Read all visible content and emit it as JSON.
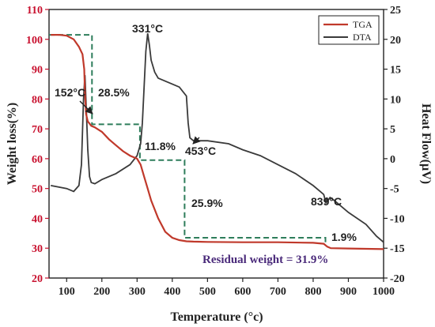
{
  "chart_data": {
    "type": "line",
    "xlabel": "Temperature (°c)",
    "ylabel": "Weight loss(%)",
    "y2label": "Heat Flow(µV)",
    "xlim": [
      50,
      1000
    ],
    "ylim": [
      20,
      110
    ],
    "y2lim": [
      -20,
      25
    ],
    "x_ticks": [
      100,
      200,
      300,
      400,
      500,
      600,
      700,
      800,
      900,
      1000
    ],
    "y_ticks": [
      20,
      30,
      40,
      50,
      60,
      70,
      80,
      90,
      100,
      110
    ],
    "y2_ticks": [
      -20,
      -15,
      -10,
      -5,
      0,
      5,
      10,
      15,
      20,
      25
    ],
    "legend": {
      "position": "top-right",
      "entries": [
        "TGA",
        "DTA"
      ]
    },
    "colors": {
      "TGA": "#c0392b",
      "DTA": "#3a3a3a",
      "steps": "#2e7d5b"
    },
    "series": [
      {
        "name": "TGA",
        "axis": "left",
        "x": [
          55,
          80,
          100,
          120,
          135,
          145,
          150,
          152,
          155,
          160,
          170,
          180,
          200,
          220,
          240,
          260,
          280,
          300,
          310,
          320,
          330,
          340,
          360,
          380,
          400,
          420,
          440,
          460,
          500,
          600,
          700,
          800,
          830,
          840,
          850,
          900,
          950,
          1000
        ],
        "y": [
          101.5,
          101.5,
          101.2,
          100,
          97.5,
          95,
          90,
          82,
          75,
          72.5,
          71,
          70.5,
          69,
          66.5,
          64.5,
          62.5,
          61,
          60,
          58,
          54,
          50,
          46,
          40,
          35.5,
          33.5,
          32.7,
          32.3,
          32.2,
          32.1,
          32.0,
          32.0,
          31.8,
          31.5,
          30.5,
          30.0,
          29.9,
          29.8,
          29.7
        ]
      },
      {
        "name": "DTA",
        "axis": "right",
        "x": [
          55,
          100,
          120,
          135,
          142,
          148,
          152,
          156,
          160,
          165,
          170,
          180,
          200,
          240,
          280,
          300,
          310,
          315,
          320,
          325,
          330,
          335,
          340,
          350,
          360,
          380,
          400,
          420,
          440,
          445,
          450,
          460,
          500,
          560,
          600,
          650,
          700,
          750,
          800,
          820,
          830,
          837,
          839,
          842,
          848,
          860,
          900,
          950,
          980,
          1000
        ],
        "y": [
          -4.5,
          -5.0,
          -5.5,
          -4.5,
          -1.0,
          10.0,
          14.0,
          8.0,
          1.5,
          -3.0,
          -4.0,
          -4.2,
          -3.5,
          -2.5,
          -1.0,
          0.5,
          2.5,
          6.0,
          12.0,
          18.0,
          21.0,
          19.0,
          16.5,
          14.5,
          13.5,
          13.0,
          12.5,
          12.0,
          10.5,
          6.0,
          3.5,
          3.0,
          3.0,
          2.5,
          1.5,
          0.5,
          -1.0,
          -2.5,
          -4.5,
          -5.5,
          -6.0,
          -7.5,
          -6.5,
          -7.0,
          -6.5,
          -7.0,
          -9.0,
          -11.0,
          -13.0,
          -14.0
        ]
      }
    ],
    "step_line": {
      "x": [
        50,
        172,
        172,
        308,
        308,
        435,
        435,
        835,
        835
      ],
      "y": [
        101.5,
        101.5,
        71.5,
        71.5,
        59.5,
        59.5,
        33.5,
        33.5,
        31.8
      ]
    },
    "annotations": {
      "peak_152": "152°C",
      "peak_331": "331°C",
      "peak_453": "453°C",
      "peak_839": "839°C",
      "loss_1": "28.5%",
      "loss_2": "11.8%",
      "loss_3": "25.9%",
      "loss_4": "1.9%",
      "residual": "Residual weight = 31.9%"
    }
  }
}
